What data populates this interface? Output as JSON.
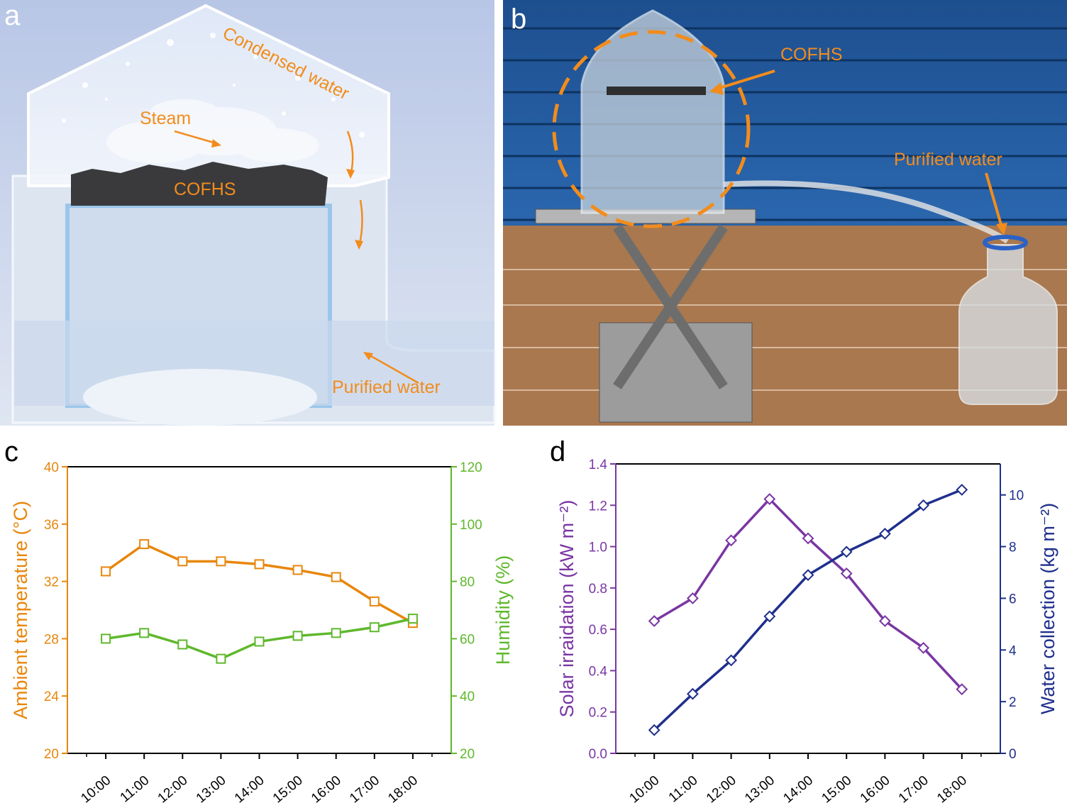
{
  "panels": {
    "a": {
      "letter": "a",
      "labels": {
        "condensed": "Condensed water",
        "steam": "Steam",
        "cofhs": "COFHS",
        "purified": "Purified water"
      }
    },
    "b": {
      "letter": "b",
      "labels": {
        "cofhs": "COFHS",
        "purified": "Purified water"
      }
    }
  },
  "colors": {
    "orange": "#e8860c",
    "green": "#5fb82c",
    "purple": "#7a36a3",
    "navy": "#1f2f8c",
    "annotation": "#f28c1c"
  },
  "chart_data": [
    {
      "panel": "c",
      "type": "line",
      "categories": [
        "10:00",
        "11:00",
        "12:00",
        "13:00",
        "14:00",
        "15:00",
        "16:00",
        "17:00",
        "18:00"
      ],
      "series": [
        {
          "name": "Ambient temperature",
          "axis": "left",
          "marker": "square",
          "values": [
            32.7,
            34.6,
            33.4,
            33.4,
            33.2,
            32.8,
            32.3,
            30.6,
            29.1
          ]
        },
        {
          "name": "Humidity",
          "axis": "right",
          "marker": "square",
          "values": [
            60,
            62,
            58,
            53,
            59,
            61,
            62,
            64,
            67
          ]
        }
      ],
      "ylabel_left": "Ambient temperature (°C)",
      "ylabel_right": "Humidity (%)",
      "ylim_left": [
        20,
        40
      ],
      "yticks_left": [
        "20",
        "24",
        "28",
        "32",
        "36",
        "40"
      ],
      "ylim_right": [
        20,
        120
      ],
      "yticks_right": [
        "20",
        "40",
        "60",
        "80",
        "100",
        "120"
      ]
    },
    {
      "panel": "d",
      "type": "line",
      "categories": [
        "10:00",
        "11:00",
        "12:00",
        "13:00",
        "14:00",
        "15:00",
        "16:00",
        "17:00",
        "18:00"
      ],
      "series": [
        {
          "name": "Solar irraidation",
          "axis": "left",
          "marker": "diamond",
          "values": [
            0.64,
            0.75,
            1.03,
            1.23,
            1.04,
            0.87,
            0.64,
            0.51,
            0.31
          ]
        },
        {
          "name": "Water collection",
          "axis": "right",
          "marker": "diamond",
          "values": [
            0.9,
            2.3,
            3.6,
            5.3,
            6.9,
            7.8,
            8.5,
            9.6,
            10.2
          ]
        }
      ],
      "ylabel_left": "Solar irraidation (kW m⁻²)",
      "ylabel_right": "Water collection (kg m⁻²)",
      "ylim_left": [
        0,
        1.4
      ],
      "yticks_left": [
        "0.0",
        "0.2",
        "0.4",
        "0.6",
        "0.8",
        "1.0",
        "1.2",
        "1.4"
      ],
      "ylim_right": [
        0,
        11.2
      ],
      "yticks_right": [
        "0",
        "2",
        "4",
        "6",
        "8",
        "10"
      ]
    }
  ]
}
